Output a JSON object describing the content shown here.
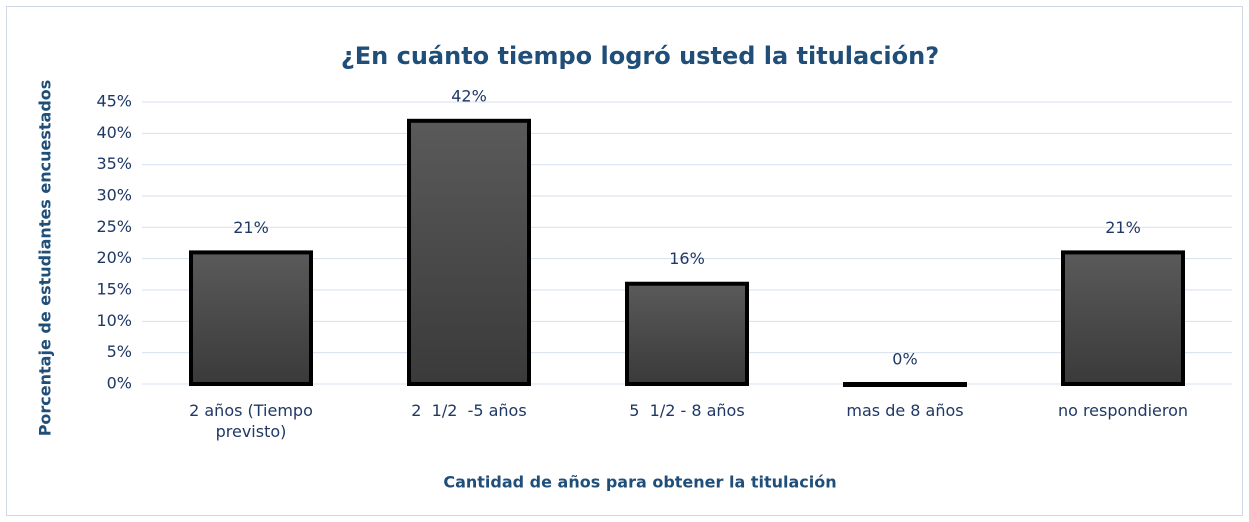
{
  "chart_data": {
    "type": "bar",
    "title": "¿En cuánto tiempo logró usted la titulación?",
    "x_label": "Cantidad de años para obtener la titulación",
    "y_label": "Porcentaje de estudiantes encuestados",
    "categories": [
      "2 años (Tiempo previsto)",
      "2  1/2  -5 años",
      "5  1/2 - 8 años",
      "mas de 8 años",
      "no respondieron"
    ],
    "values": [
      21,
      42,
      16,
      0,
      21
    ],
    "value_labels": [
      "21%",
      "42%",
      "16%",
      "0%",
      "21%"
    ],
    "color": "#4d4d4d",
    "ylim": [
      0,
      45
    ],
    "yticks": [
      {
        "value": 0,
        "label": "0%"
      },
      {
        "value": 5,
        "label": "5%"
      },
      {
        "value": 10,
        "label": "10%"
      },
      {
        "value": 15,
        "label": "15%"
      },
      {
        "value": 20,
        "label": "20%"
      },
      {
        "value": 25,
        "label": "25%"
      },
      {
        "value": 30,
        "label": "30%"
      },
      {
        "value": 35,
        "label": "35%"
      },
      {
        "value": 40,
        "label": "40%"
      },
      {
        "value": 45,
        "label": "45%"
      }
    ],
    "grid": true
  }
}
